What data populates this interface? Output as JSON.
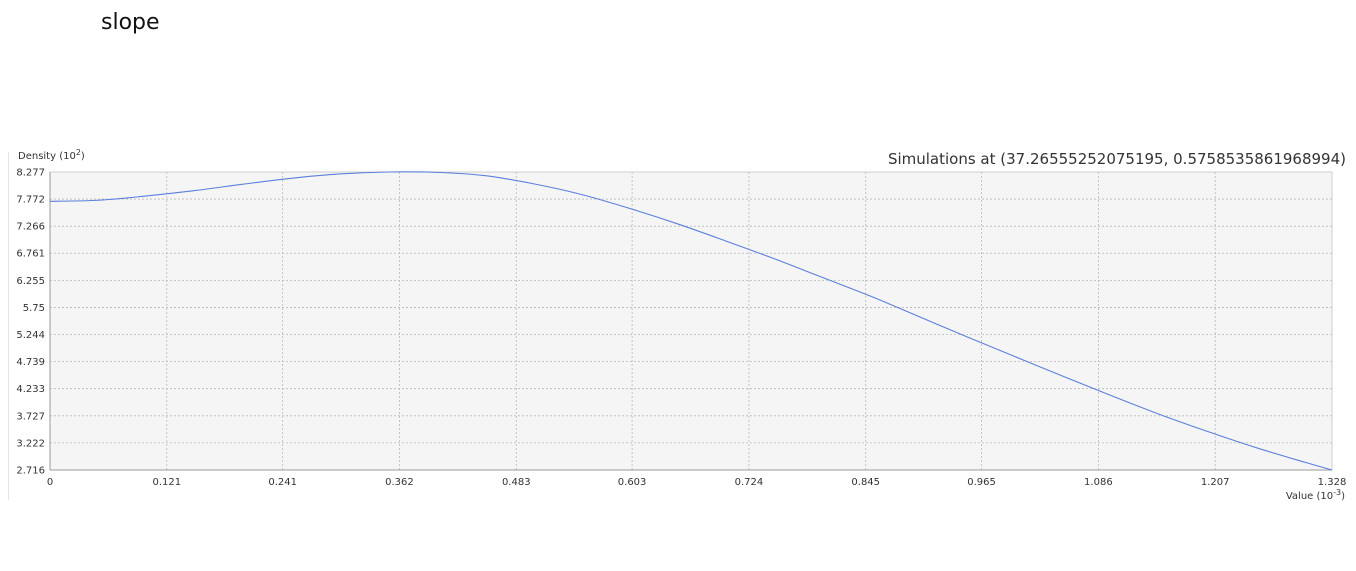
{
  "page": {
    "heading": "slope"
  },
  "chart_data": {
    "type": "line",
    "title": "Simulations at (37.26555252075195, 0.5758535861968994)",
    "ylabel": {
      "text": "Density (10",
      "sup": "2",
      "close": ")"
    },
    "xlabel": {
      "text": "Value (10",
      "sup": "-3",
      "close": ")"
    },
    "xlim": [
      0,
      1.328
    ],
    "ylim": [
      2.716,
      8.277
    ],
    "grid": true,
    "legend": "none",
    "x_ticks": [
      "0",
      "0.121",
      "0.241",
      "0.362",
      "0.483",
      "0.603",
      "0.724",
      "0.845",
      "0.965",
      "1.086",
      "1.207",
      "1.328"
    ],
    "y_ticks": [
      "8.277",
      "7.772",
      "7.266",
      "6.761",
      "6.255",
      "5.75",
      "5.244",
      "4.739",
      "4.233",
      "3.727",
      "3.222",
      "2.716"
    ],
    "colors": {
      "line": "#5b7fdc",
      "plot_bg": "#f5f5f5",
      "grid": "#b8b8b8",
      "axis": "#9a9a9a",
      "text": "#333333"
    },
    "series": [
      {
        "x": [
          0,
          0.05,
          0.1,
          0.15,
          0.2,
          0.25,
          0.3,
          0.35,
          0.4,
          0.45,
          0.5,
          0.55,
          0.6,
          0.65,
          0.7,
          0.75,
          0.8,
          0.85,
          0.9,
          0.95,
          1.0,
          1.05,
          1.1,
          1.15,
          1.2,
          1.25,
          1.3,
          1.328
        ],
        "y": [
          7.73,
          7.75,
          7.83,
          7.93,
          8.05,
          8.16,
          8.24,
          8.277,
          8.27,
          8.21,
          8.06,
          7.86,
          7.6,
          7.31,
          6.99,
          6.66,
          6.31,
          5.96,
          5.58,
          5.2,
          4.83,
          4.46,
          4.1,
          3.75,
          3.43,
          3.13,
          2.86,
          2.716
        ]
      }
    ]
  }
}
